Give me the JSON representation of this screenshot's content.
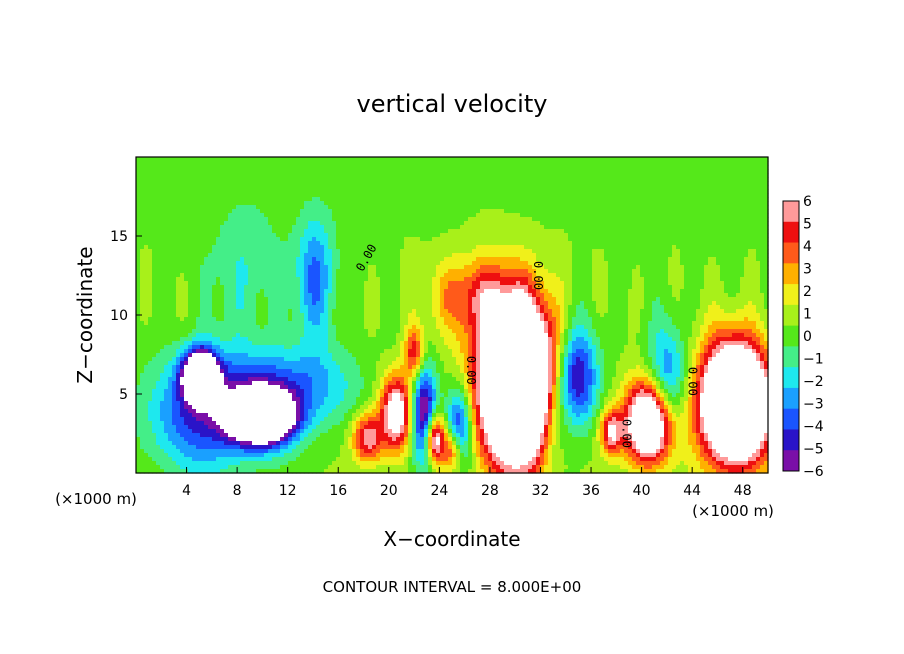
{
  "chart_data": {
    "type": "heatmap",
    "title": "vertical velocity",
    "xlabel": "X−coordinate",
    "ylabel": "Z−coordinate",
    "x_unit_note": "(×1000 m)",
    "z_unit_note": "(×1000 m)",
    "footer": "CONTOUR INTERVAL = 8.000E+00",
    "xlim": [
      0,
      50
    ],
    "ylim": [
      0,
      20
    ],
    "x_ticks": [
      4,
      8,
      12,
      16,
      20,
      24,
      28,
      32,
      36,
      40,
      44,
      48
    ],
    "y_ticks": [
      5,
      10,
      15
    ],
    "colorbar": {
      "ticks": [
        "6",
        "5",
        "4",
        "3",
        "2",
        "1",
        "0",
        "−1",
        "−2",
        "−3",
        "−4",
        "−5",
        "−6"
      ],
      "range": [
        -6,
        6
      ]
    },
    "contour_labels": [
      {
        "text": "0.00",
        "x": 18.5,
        "z": 13.5,
        "angle": -60
      },
      {
        "text": "0.00",
        "x": 31.5,
        "z": 12.5,
        "angle": 90
      },
      {
        "text": "0.00",
        "x": 26.2,
        "z": 6.5,
        "angle": 90
      },
      {
        "text": "0.00",
        "x": 43.7,
        "z": 5.8,
        "angle": 90
      },
      {
        "text": "0.00",
        "x": 38.5,
        "z": 2.5,
        "angle": 90
      }
    ],
    "features": [
      {
        "kind": "updraft",
        "x": 30.2,
        "z": 5.6,
        "rx": 3.0,
        "rz": 5.0,
        "peak": 18
      },
      {
        "kind": "updraft",
        "x": 47.4,
        "z": 4.4,
        "rx": 2.8,
        "rz": 3.8,
        "peak": 16
      },
      {
        "kind": "updraft",
        "x": 40.6,
        "z": 3.2,
        "rx": 1.9,
        "rz": 2.6,
        "peak": 12
      },
      {
        "kind": "updraft",
        "x": 23.6,
        "z": 2.2,
        "rx": 0.8,
        "rz": 1.6,
        "peak": 9
      },
      {
        "kind": "updraft",
        "x": 20.6,
        "z": 3.8,
        "rx": 1.3,
        "rz": 2.4,
        "peak": 8
      },
      {
        "kind": "updraft",
        "x": 18.3,
        "z": 2.2,
        "rx": 1.2,
        "rz": 1.6,
        "peak": 6
      },
      {
        "kind": "updraft",
        "x": 22.0,
        "z": 7.6,
        "rx": 0.8,
        "rz": 1.6,
        "peak": 5
      },
      {
        "kind": "updraft",
        "x": 37.6,
        "z": 2.6,
        "rx": 0.9,
        "rz": 1.4,
        "peak": 6
      },
      {
        "kind": "updraft",
        "x": 25.0,
        "z": 1.4,
        "rx": 0.8,
        "rz": 1.4,
        "peak": 5
      },
      {
        "kind": "updraft",
        "x": 26.8,
        "z": 11.2,
        "rx": 3.5,
        "rz": 2.5,
        "peak": 4
      },
      {
        "kind": "downdraft",
        "x": 10.0,
        "z": 3.5,
        "rx": 2.5,
        "rz": 1.6,
        "peak": -14
      },
      {
        "kind": "downdraft",
        "x": 5.1,
        "z": 6.2,
        "rx": 1.4,
        "rz": 1.6,
        "peak": -12
      },
      {
        "kind": "downdraft",
        "x": 5.5,
        "z": 3.6,
        "rx": 4.5,
        "rz": 3.5,
        "peak": -5
      },
      {
        "kind": "downdraft",
        "x": 12.0,
        "z": 5.5,
        "rx": 5.0,
        "rz": 2.5,
        "peak": -4
      },
      {
        "kind": "downdraft",
        "x": 14.2,
        "z": 12.5,
        "rx": 1.6,
        "rz": 4.0,
        "peak": -4
      },
      {
        "kind": "downdraft",
        "x": 8.5,
        "z": 13.0,
        "rx": 3.0,
        "rz": 4.5,
        "peak": -1.8
      },
      {
        "kind": "downdraft",
        "x": 34.8,
        "z": 6.0,
        "rx": 1.6,
        "rz": 3.2,
        "peak": -7
      },
      {
        "kind": "downdraft",
        "x": 42.0,
        "z": 5.5,
        "rx": 1.6,
        "rz": 3.5,
        "peak": -5
      },
      {
        "kind": "downdraft",
        "x": 22.8,
        "z": 3.5,
        "rx": 1.0,
        "rz": 3.0,
        "peak": -8
      },
      {
        "kind": "downdraft",
        "x": 25.6,
        "z": 3.0,
        "rx": 1.0,
        "rz": 2.5,
        "peak": -6
      },
      {
        "kind": "downdraft",
        "x": 33.0,
        "z": 3.5,
        "rx": 1.2,
        "rz": 3.5,
        "peak": -3
      }
    ]
  }
}
